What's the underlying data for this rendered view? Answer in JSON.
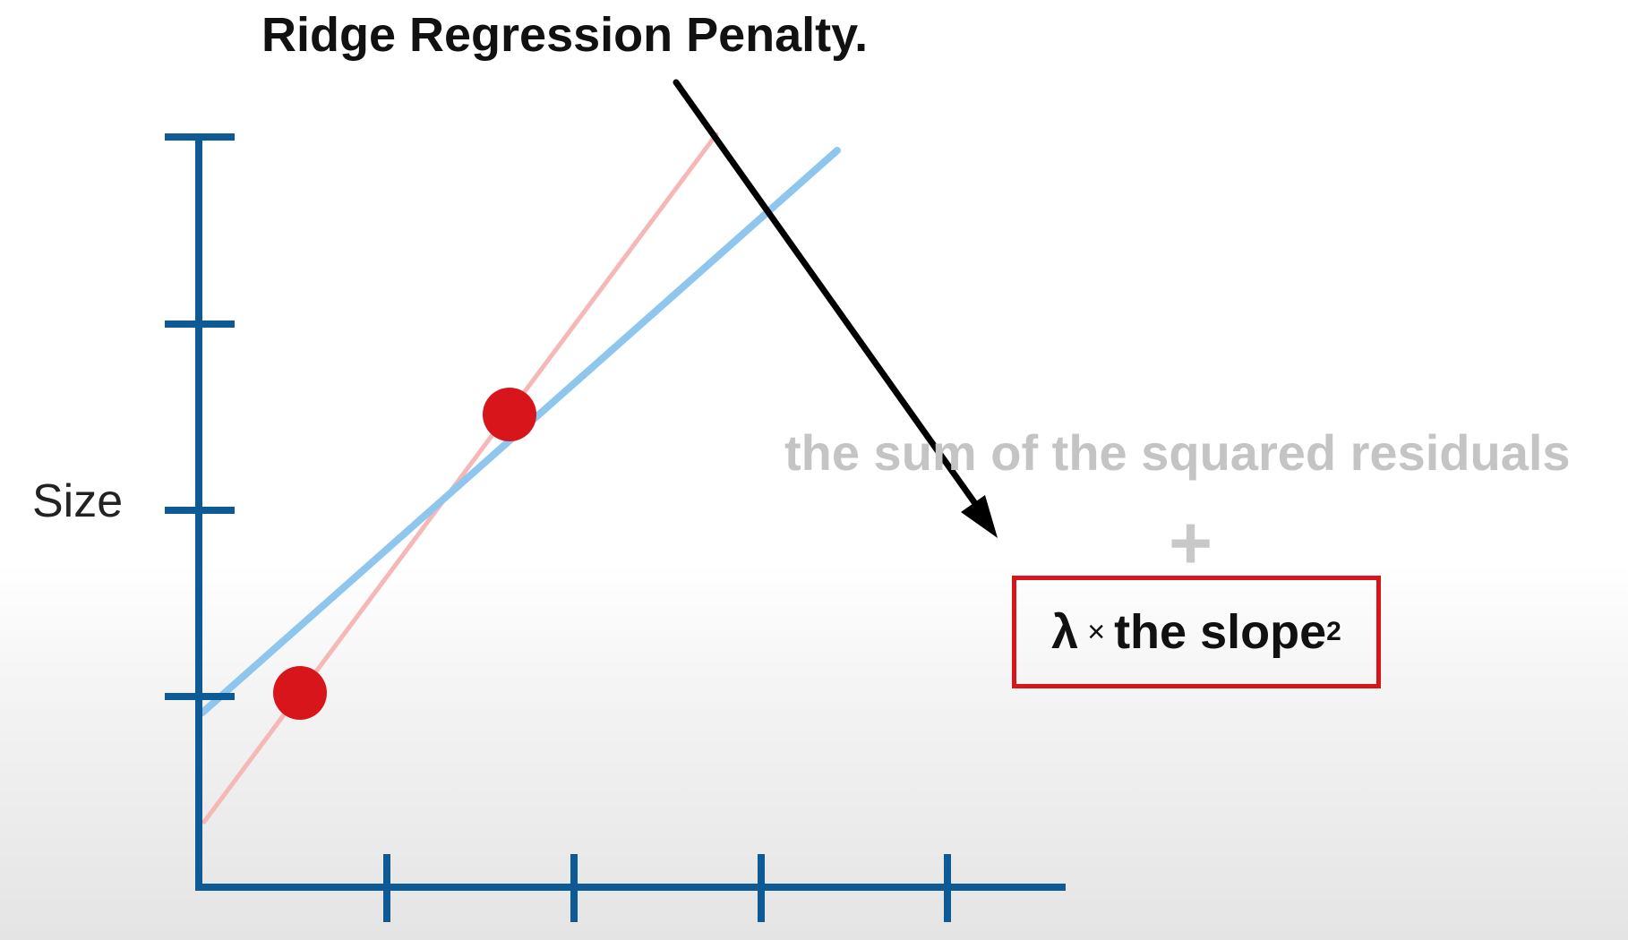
{
  "title": "Ridge Regression Penalty.",
  "y_axis_label": "Size",
  "equation": {
    "sum_of_squared_residuals": "the sum of the squared residuals",
    "plus": "+",
    "penalty": {
      "lambda": "λ",
      "times": "×",
      "text": "the slope",
      "exponent": "2"
    }
  },
  "colors": {
    "axis": "#0d5a94",
    "points": "#d9151c",
    "ridge_line": "#8ec6ee",
    "least_squares_line": "#f5b8b6",
    "arrow": "#000000",
    "box_border": "#d9151c"
  }
}
